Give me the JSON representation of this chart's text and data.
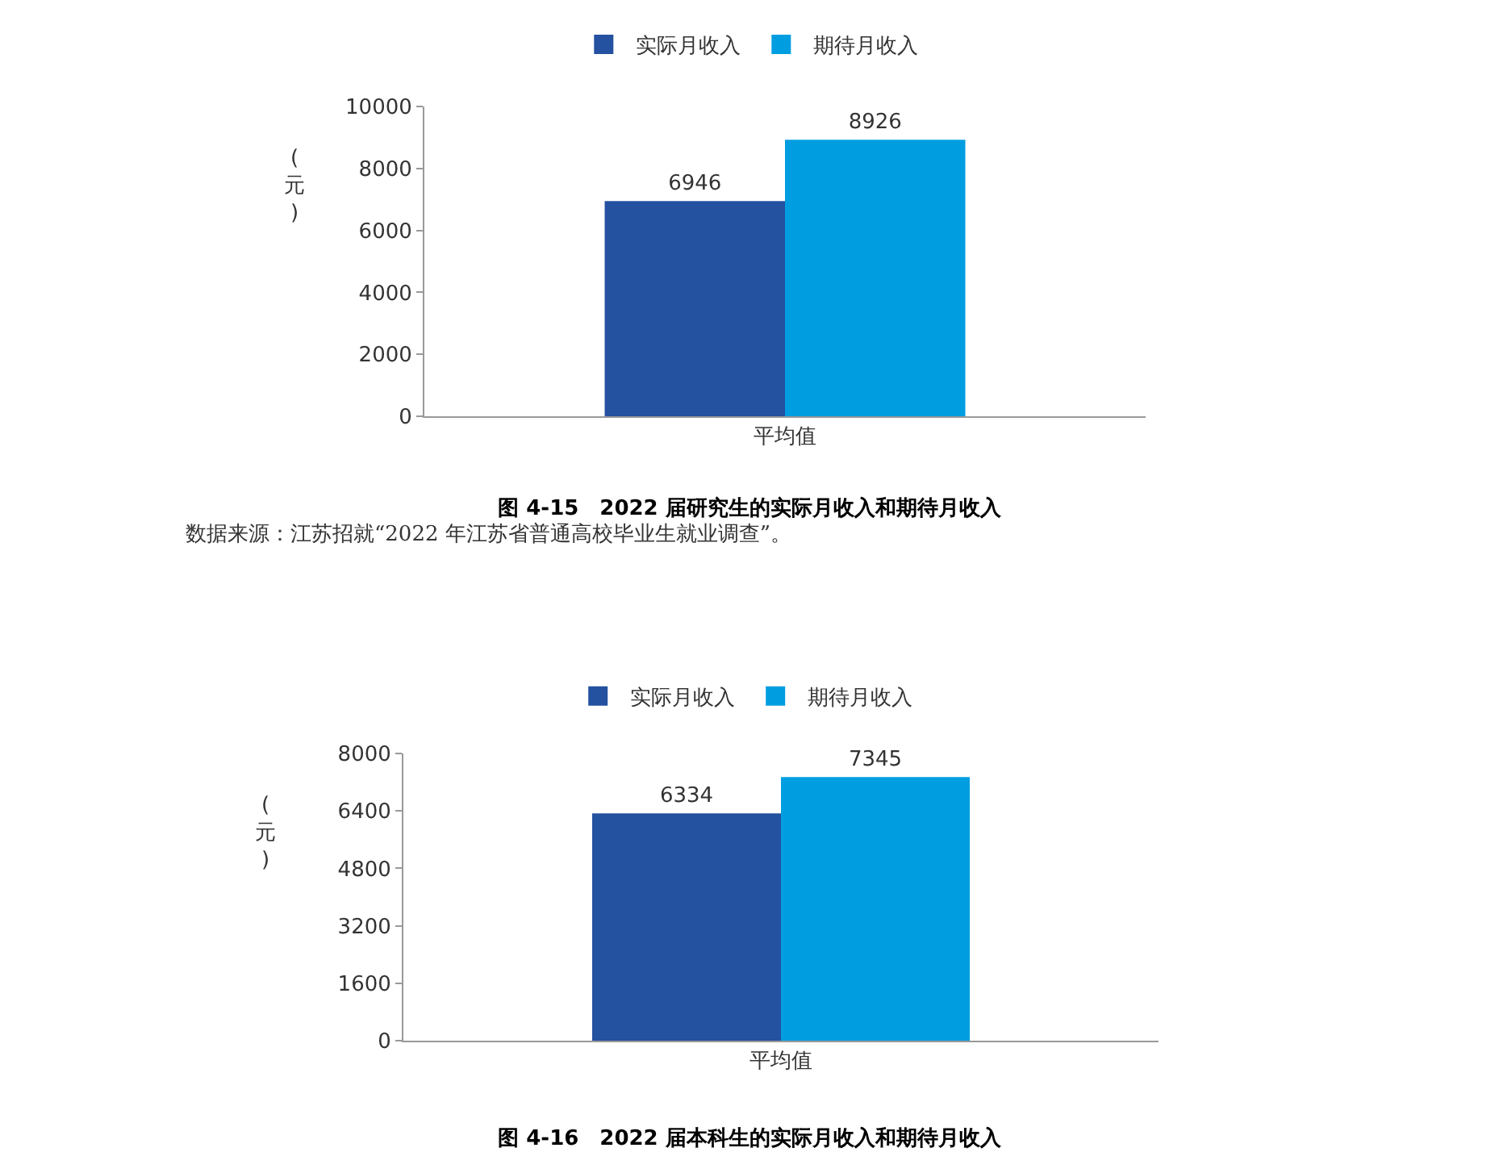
{
  "chart_data": [
    {
      "type": "bar",
      "title": "图 4-15　2022 届研究生的实际月收入和期待月收入",
      "ylabel": "(元)",
      "categories": [
        "平均值"
      ],
      "series": [
        {
          "name": "实际月收入",
          "color": "#2451a0",
          "values": [
            6946
          ]
        },
        {
          "name": "期待月收入",
          "color": "#009ee0",
          "values": [
            8926
          ]
        }
      ],
      "ylim": [
        0,
        10000
      ],
      "yticks": [
        0,
        2000,
        4000,
        6000,
        8000,
        10000
      ],
      "grid": false,
      "legend": "top",
      "data_labels": true,
      "annotations": [
        "数据来源：江苏招就“2022 年江苏省普通高校毕业生就业调查”。"
      ]
    },
    {
      "type": "bar",
      "title": "图 4-16　2022 届本科生的实际月收入和期待月收入",
      "ylabel": "(元)",
      "categories": [
        "平均值"
      ],
      "series": [
        {
          "name": "实际月收入",
          "color": "#2451a0",
          "values": [
            6334
          ]
        },
        {
          "name": "期待月收入",
          "color": "#009ee0",
          "values": [
            7345
          ]
        }
      ],
      "ylim": [
        0,
        8000
      ],
      "yticks": [
        0,
        1600,
        3200,
        4800,
        6400,
        8000
      ],
      "grid": false,
      "legend": "top",
      "data_labels": true
    }
  ]
}
